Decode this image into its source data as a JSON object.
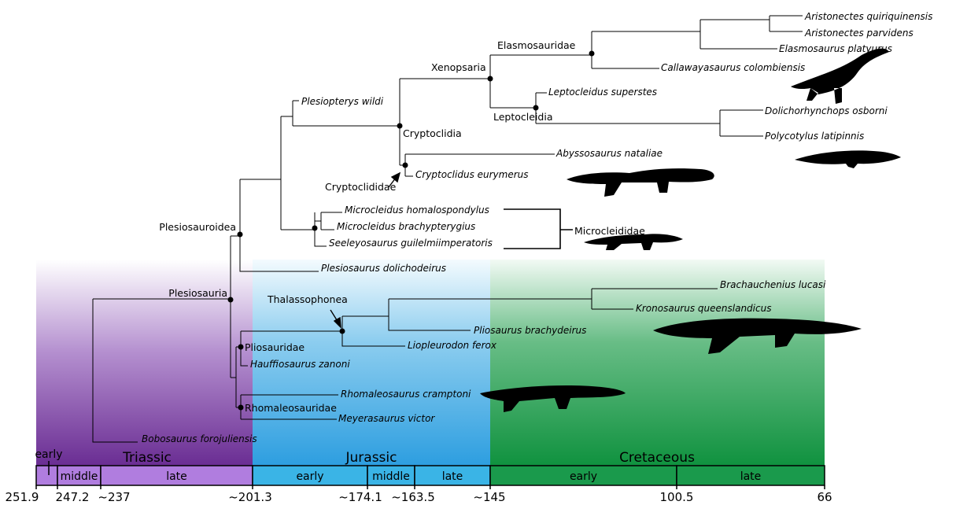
{
  "time_scale": {
    "periods": [
      "Triassic",
      "Jurassic",
      "Cretaceous"
    ],
    "epochs": [
      "early",
      "middle",
      "late",
      "early",
      "middle",
      "late",
      "early",
      "late"
    ],
    "boundaries": [
      "251.9",
      "247.2",
      "~237",
      "~201.3",
      "~174.1",
      "~163.5",
      "~145",
      "100.5",
      "66"
    ]
  },
  "clades": [
    "Elasmosauridae",
    "Xenopsaria",
    "Leptocleidia",
    "Cryptoclidia",
    "Cryptoclididae",
    "Microcleididae",
    "Plesiosauroidea",
    "Plesiosauria",
    "Thalassophonea",
    "Pliosauridae",
    "Rhomaleosauridae"
  ],
  "taxa": [
    "Aristonectes quiriquinensis",
    "Aristonectes parvidens",
    "Elasmosaurus platyurus",
    "Callawayasaurus colombiensis",
    "Leptocleidus superstes",
    "Dolichorhynchops osborni",
    "Polycotylus latipinnis",
    "Plesiopterys wildi",
    "Abyssosaurus nataliae",
    "Cryptoclidus eurymerus",
    "Microcleidus homalospondylus",
    "Microcleidus brachypterygius",
    "Seeleyosaurus guilelmiimperatoris",
    "Plesiosaurus dolichodeirus",
    "Brachauchenius lucasi",
    "Kronosaurus queenslandicus",
    "Pliosaurus brachydeirus",
    "Liopleurodon ferox",
    "Hauffiosaurus zanoni",
    "Rhomaleosaurus cramptoni",
    "Meyerasaurus victor",
    "Bobosaurus forojuliensis"
  ]
}
